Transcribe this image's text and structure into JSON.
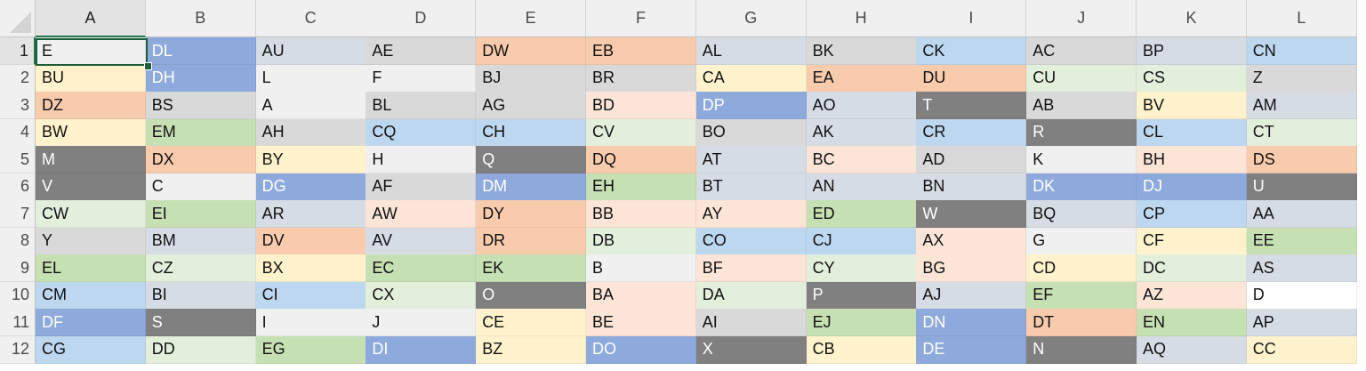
{
  "colors": {
    "gray": "#d9d9d9",
    "lightgray": "#f0f0f0",
    "slate": "#d6dce4",
    "darkgray": "#808080",
    "blue": "#8ea9db",
    "lightblue": "#bdd7ee",
    "peach": "#fce4d6",
    "orange": "#f8cbad",
    "green": "#c6e0b4",
    "lightgreen": "#e2efda",
    "yellow": "#fff2cc",
    "white": "#ffffff"
  },
  "dark_fills": [
    "darkgray",
    "blue"
  ],
  "active_cell": "A1",
  "columns": [
    "A",
    "B",
    "C",
    "D",
    "E",
    "F",
    "G",
    "H",
    "I",
    "J",
    "K",
    "L"
  ],
  "rows": [
    {
      "num": "1",
      "cells": [
        {
          "t": "E",
          "c": "lightgray"
        },
        {
          "t": "DL",
          "c": "blue"
        },
        {
          "t": "AU",
          "c": "slate"
        },
        {
          "t": "AE",
          "c": "gray"
        },
        {
          "t": "DW",
          "c": "orange"
        },
        {
          "t": "EB",
          "c": "orange"
        },
        {
          "t": "AL",
          "c": "slate"
        },
        {
          "t": "BK",
          "c": "gray"
        },
        {
          "t": "CK",
          "c": "lightblue"
        },
        {
          "t": "AC",
          "c": "gray"
        },
        {
          "t": "BP",
          "c": "slate"
        },
        {
          "t": "CN",
          "c": "lightblue"
        }
      ]
    },
    {
      "num": "2",
      "cells": [
        {
          "t": "BU",
          "c": "yellow"
        },
        {
          "t": "DH",
          "c": "blue"
        },
        {
          "t": "L",
          "c": "lightgray"
        },
        {
          "t": "F",
          "c": "lightgray"
        },
        {
          "t": "BJ",
          "c": "gray"
        },
        {
          "t": "BR",
          "c": "gray"
        },
        {
          "t": "CA",
          "c": "yellow"
        },
        {
          "t": "EA",
          "c": "orange"
        },
        {
          "t": "DU",
          "c": "orange"
        },
        {
          "t": "CU",
          "c": "lightgreen"
        },
        {
          "t": "CS",
          "c": "lightgreen"
        },
        {
          "t": "Z",
          "c": "gray"
        }
      ]
    },
    {
      "num": "3",
      "cells": [
        {
          "t": "DZ",
          "c": "orange"
        },
        {
          "t": "BS",
          "c": "gray"
        },
        {
          "t": "A",
          "c": "lightgray"
        },
        {
          "t": "BL",
          "c": "gray"
        },
        {
          "t": "AG",
          "c": "gray"
        },
        {
          "t": "BD",
          "c": "peach"
        },
        {
          "t": "DP",
          "c": "blue"
        },
        {
          "t": "AO",
          "c": "slate"
        },
        {
          "t": "T",
          "c": "darkgray"
        },
        {
          "t": "AB",
          "c": "gray"
        },
        {
          "t": "BV",
          "c": "yellow"
        },
        {
          "t": "AM",
          "c": "slate"
        }
      ]
    },
    {
      "num": "4",
      "cells": [
        {
          "t": "BW",
          "c": "yellow"
        },
        {
          "t": "EM",
          "c": "green"
        },
        {
          "t": "AH",
          "c": "gray"
        },
        {
          "t": "CQ",
          "c": "lightblue"
        },
        {
          "t": "CH",
          "c": "lightblue"
        },
        {
          "t": "CV",
          "c": "lightgreen"
        },
        {
          "t": "BO",
          "c": "gray"
        },
        {
          "t": "AK",
          "c": "slate"
        },
        {
          "t": "CR",
          "c": "lightblue"
        },
        {
          "t": "R",
          "c": "darkgray"
        },
        {
          "t": "CL",
          "c": "lightblue"
        },
        {
          "t": "CT",
          "c": "lightgreen"
        }
      ]
    },
    {
      "num": "5",
      "cells": [
        {
          "t": "M",
          "c": "darkgray"
        },
        {
          "t": "DX",
          "c": "orange"
        },
        {
          "t": "BY",
          "c": "yellow"
        },
        {
          "t": "H",
          "c": "lightgray"
        },
        {
          "t": "Q",
          "c": "darkgray"
        },
        {
          "t": "DQ",
          "c": "orange"
        },
        {
          "t": "AT",
          "c": "slate"
        },
        {
          "t": "BC",
          "c": "peach"
        },
        {
          "t": "AD",
          "c": "gray"
        },
        {
          "t": "K",
          "c": "lightgray"
        },
        {
          "t": "BH",
          "c": "peach"
        },
        {
          "t": "DS",
          "c": "orange"
        }
      ]
    },
    {
      "num": "6",
      "cells": [
        {
          "t": "V",
          "c": "darkgray"
        },
        {
          "t": "C",
          "c": "lightgray"
        },
        {
          "t": "DG",
          "c": "blue"
        },
        {
          "t": "AF",
          "c": "gray"
        },
        {
          "t": "DM",
          "c": "blue"
        },
        {
          "t": "EH",
          "c": "green"
        },
        {
          "t": "BT",
          "c": "slate"
        },
        {
          "t": "AN",
          "c": "slate"
        },
        {
          "t": "BN",
          "c": "slate"
        },
        {
          "t": "DK",
          "c": "blue"
        },
        {
          "t": "DJ",
          "c": "blue"
        },
        {
          "t": "U",
          "c": "darkgray"
        }
      ]
    },
    {
      "num": "7",
      "cells": [
        {
          "t": "CW",
          "c": "lightgreen"
        },
        {
          "t": "EI",
          "c": "green"
        },
        {
          "t": "AR",
          "c": "slate"
        },
        {
          "t": "AW",
          "c": "peach"
        },
        {
          "t": "DY",
          "c": "orange"
        },
        {
          "t": "BB",
          "c": "peach"
        },
        {
          "t": "AY",
          "c": "peach"
        },
        {
          "t": "ED",
          "c": "green"
        },
        {
          "t": "W",
          "c": "darkgray"
        },
        {
          "t": "BQ",
          "c": "slate"
        },
        {
          "t": "CP",
          "c": "lightblue"
        },
        {
          "t": "AA",
          "c": "slate"
        }
      ]
    },
    {
      "num": "8",
      "cells": [
        {
          "t": "Y",
          "c": "gray"
        },
        {
          "t": "BM",
          "c": "slate"
        },
        {
          "t": "DV",
          "c": "orange"
        },
        {
          "t": "AV",
          "c": "slate"
        },
        {
          "t": "DR",
          "c": "orange"
        },
        {
          "t": "DB",
          "c": "lightgreen"
        },
        {
          "t": "CO",
          "c": "lightblue"
        },
        {
          "t": "CJ",
          "c": "lightblue"
        },
        {
          "t": "AX",
          "c": "peach"
        },
        {
          "t": "G",
          "c": "lightgray"
        },
        {
          "t": "CF",
          "c": "yellow"
        },
        {
          "t": "EE",
          "c": "green"
        }
      ]
    },
    {
      "num": "9",
      "cells": [
        {
          "t": "EL",
          "c": "green"
        },
        {
          "t": "CZ",
          "c": "lightgreen"
        },
        {
          "t": "BX",
          "c": "yellow"
        },
        {
          "t": "EC",
          "c": "green"
        },
        {
          "t": "EK",
          "c": "green"
        },
        {
          "t": "B",
          "c": "lightgray"
        },
        {
          "t": "BF",
          "c": "peach"
        },
        {
          "t": "CY",
          "c": "lightgreen"
        },
        {
          "t": "BG",
          "c": "peach"
        },
        {
          "t": "CD",
          "c": "yellow"
        },
        {
          "t": "DC",
          "c": "lightgreen"
        },
        {
          "t": "AS",
          "c": "slate"
        }
      ]
    },
    {
      "num": "10",
      "cells": [
        {
          "t": "CM",
          "c": "lightblue"
        },
        {
          "t": "BI",
          "c": "slate"
        },
        {
          "t": "CI",
          "c": "lightblue"
        },
        {
          "t": "CX",
          "c": "lightgreen"
        },
        {
          "t": "O",
          "c": "darkgray"
        },
        {
          "t": "BA",
          "c": "peach"
        },
        {
          "t": "DA",
          "c": "lightgreen"
        },
        {
          "t": "P",
          "c": "darkgray"
        },
        {
          "t": "AJ",
          "c": "slate"
        },
        {
          "t": "EF",
          "c": "green"
        },
        {
          "t": "AZ",
          "c": "peach"
        },
        {
          "t": "D",
          "c": "white"
        }
      ]
    },
    {
      "num": "11",
      "cells": [
        {
          "t": "DF",
          "c": "blue"
        },
        {
          "t": "S",
          "c": "darkgray"
        },
        {
          "t": "I",
          "c": "lightgray"
        },
        {
          "t": "J",
          "c": "lightgray"
        },
        {
          "t": "CE",
          "c": "yellow"
        },
        {
          "t": "BE",
          "c": "peach"
        },
        {
          "t": "AI",
          "c": "gray"
        },
        {
          "t": "EJ",
          "c": "green"
        },
        {
          "t": "DN",
          "c": "blue"
        },
        {
          "t": "DT",
          "c": "orange"
        },
        {
          "t": "EN",
          "c": "green"
        },
        {
          "t": "AP",
          "c": "slate"
        }
      ]
    },
    {
      "num": "12",
      "cells": [
        {
          "t": "CG",
          "c": "lightblue"
        },
        {
          "t": "DD",
          "c": "lightgreen"
        },
        {
          "t": "EG",
          "c": "green"
        },
        {
          "t": "DI",
          "c": "blue"
        },
        {
          "t": "BZ",
          "c": "yellow"
        },
        {
          "t": "DO",
          "c": "blue"
        },
        {
          "t": "X",
          "c": "darkgray"
        },
        {
          "t": "CB",
          "c": "yellow"
        },
        {
          "t": "DE",
          "c": "blue"
        },
        {
          "t": "N",
          "c": "darkgray"
        },
        {
          "t": "AQ",
          "c": "slate"
        },
        {
          "t": "CC",
          "c": "yellow"
        }
      ]
    }
  ]
}
